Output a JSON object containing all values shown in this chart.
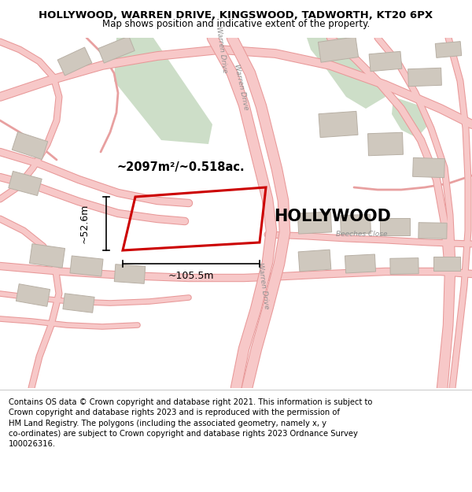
{
  "title": "HOLLYWOOD, WARREN DRIVE, KINGSWOOD, TADWORTH, KT20 6PX",
  "subtitle": "Map shows position and indicative extent of the property.",
  "footer": "Contains OS data © Crown copyright and database right 2021. This information is subject to\nCrown copyright and database rights 2023 and is reproduced with the permission of\nHM Land Registry. The polygons (including the associated geometry, namely x, y\nco-ordinates) are subject to Crown copyright and database rights 2023 Ordnance Survey\n100026316.",
  "property_label": "HOLLYWOOD",
  "area_label": "~2097m²/~0.518ac.",
  "width_label": "~105.5m",
  "height_label": "~52.6m",
  "bg_color": "#f2ede8",
  "road_fill": "#f7c8c8",
  "road_edge": "#e89898",
  "road_thin": "#e8a0a0",
  "green_color": "#cddec8",
  "building_fill": "#cfc8be",
  "building_edge": "#b8b0a5",
  "property_edge": "#cc0000",
  "white": "#ffffff",
  "title_fs": 9.5,
  "subtitle_fs": 8.5,
  "footer_fs": 7.2,
  "label_fs": 15,
  "area_fs": 10.5,
  "dim_fs": 9
}
